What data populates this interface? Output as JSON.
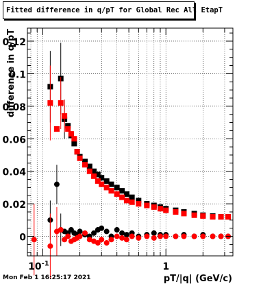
{
  "chart_data": {
    "type": "scatter",
    "title": "Fitted difference in q/pT for Global Rec All EtapT",
    "xlabel": "pT/|q| (GeV/c)",
    "ylabel": "difference in q/pT",
    "x_scale": "log",
    "xlim": [
      0.075,
      3.5
    ],
    "ylim": [
      -0.012,
      0.128
    ],
    "x_ticks": [
      {
        "value": 0.1,
        "label": "10^-1"
      },
      {
        "value": 1,
        "label": "1"
      }
    ],
    "y_ticks": [
      {
        "value": 0,
        "label": "0"
      },
      {
        "value": 0.02,
        "label": "0.02"
      },
      {
        "value": 0.04,
        "label": "0.04"
      },
      {
        "value": 0.06,
        "label": "0.06"
      },
      {
        "value": 0.08,
        "label": "0.08"
      },
      {
        "value": 0.1,
        "label": "0.1"
      },
      {
        "value": 0.12,
        "label": "0.12"
      }
    ],
    "grid": true,
    "series": [
      {
        "color": "#000000",
        "marker": "square",
        "points": [
          {
            "x": 0.115,
            "y": 0.092,
            "err": 0.022
          },
          {
            "x": 0.13,
            "y": 0.066
          },
          {
            "x": 0.14,
            "y": 0.097,
            "err": 0.022
          },
          {
            "x": 0.15,
            "y": 0.072,
            "err": 0.012
          },
          {
            "x": 0.16,
            "y": 0.068
          },
          {
            "x": 0.17,
            "y": 0.062
          },
          {
            "x": 0.18,
            "y": 0.057
          },
          {
            "x": 0.19,
            "y": 0.052
          },
          {
            "x": 0.2,
            "y": 0.049
          },
          {
            "x": 0.22,
            "y": 0.046
          },
          {
            "x": 0.24,
            "y": 0.043
          },
          {
            "x": 0.26,
            "y": 0.04
          },
          {
            "x": 0.28,
            "y": 0.038
          },
          {
            "x": 0.3,
            "y": 0.036
          },
          {
            "x": 0.33,
            "y": 0.034
          },
          {
            "x": 0.36,
            "y": 0.032
          },
          {
            "x": 0.4,
            "y": 0.03
          },
          {
            "x": 0.44,
            "y": 0.028
          },
          {
            "x": 0.48,
            "y": 0.026
          },
          {
            "x": 0.53,
            "y": 0.024
          },
          {
            "x": 0.6,
            "y": 0.022
          },
          {
            "x": 0.7,
            "y": 0.02
          },
          {
            "x": 0.8,
            "y": 0.019
          },
          {
            "x": 0.9,
            "y": 0.018
          },
          {
            "x": 1.0,
            "y": 0.017
          },
          {
            "x": 1.2,
            "y": 0.016
          },
          {
            "x": 1.4,
            "y": 0.015
          },
          {
            "x": 1.7,
            "y": 0.014
          },
          {
            "x": 2.0,
            "y": 0.013
          },
          {
            "x": 2.4,
            "y": 0.0125
          },
          {
            "x": 2.8,
            "y": 0.012
          },
          {
            "x": 3.2,
            "y": 0.012
          }
        ]
      },
      {
        "color": "#ff0000",
        "marker": "square",
        "points": [
          {
            "x": 0.115,
            "y": 0.082,
            "err": 0.023
          },
          {
            "x": 0.13,
            "y": 0.066
          },
          {
            "x": 0.14,
            "y": 0.082,
            "err": 0.016
          },
          {
            "x": 0.15,
            "y": 0.074,
            "err": 0.01
          },
          {
            "x": 0.16,
            "y": 0.066
          },
          {
            "x": 0.17,
            "y": 0.063
          },
          {
            "x": 0.18,
            "y": 0.06
          },
          {
            "x": 0.19,
            "y": 0.052
          },
          {
            "x": 0.2,
            "y": 0.048
          },
          {
            "x": 0.22,
            "y": 0.044
          },
          {
            "x": 0.24,
            "y": 0.04
          },
          {
            "x": 0.26,
            "y": 0.037
          },
          {
            "x": 0.28,
            "y": 0.034
          },
          {
            "x": 0.3,
            "y": 0.032
          },
          {
            "x": 0.33,
            "y": 0.03
          },
          {
            "x": 0.36,
            "y": 0.028
          },
          {
            "x": 0.4,
            "y": 0.026
          },
          {
            "x": 0.44,
            "y": 0.024
          },
          {
            "x": 0.48,
            "y": 0.022
          },
          {
            "x": 0.53,
            "y": 0.021
          },
          {
            "x": 0.6,
            "y": 0.02
          },
          {
            "x": 0.7,
            "y": 0.019
          },
          {
            "x": 0.8,
            "y": 0.018
          },
          {
            "x": 0.9,
            "y": 0.017
          },
          {
            "x": 1.0,
            "y": 0.016
          },
          {
            "x": 1.2,
            "y": 0.015
          },
          {
            "x": 1.4,
            "y": 0.014
          },
          {
            "x": 1.7,
            "y": 0.013
          },
          {
            "x": 2.0,
            "y": 0.0125
          },
          {
            "x": 2.4,
            "y": 0.012
          },
          {
            "x": 2.8,
            "y": 0.012
          },
          {
            "x": 3.2,
            "y": 0.012
          }
        ]
      },
      {
        "color": "#000000",
        "marker": "circle",
        "points": [
          {
            "x": 0.115,
            "y": 0.01,
            "err": 0.012
          },
          {
            "x": 0.13,
            "y": 0.032,
            "err": 0.012
          },
          {
            "x": 0.14,
            "y": 0.004,
            "err": 0.01
          },
          {
            "x": 0.15,
            "y": 0.003
          },
          {
            "x": 0.16,
            "y": 0.002
          },
          {
            "x": 0.17,
            "y": 0.004
          },
          {
            "x": 0.18,
            "y": 0.002
          },
          {
            "x": 0.19,
            "y": 0.001
          },
          {
            "x": 0.2,
            "y": 0.003
          },
          {
            "x": 0.22,
            "y": 0.001
          },
          {
            "x": 0.24,
            "y": 0.0
          },
          {
            "x": 0.26,
            "y": 0.002
          },
          {
            "x": 0.28,
            "y": 0.004
          },
          {
            "x": 0.3,
            "y": 0.005
          },
          {
            "x": 0.33,
            "y": 0.003
          },
          {
            "x": 0.36,
            "y": 0.0
          },
          {
            "x": 0.4,
            "y": 0.004
          },
          {
            "x": 0.44,
            "y": 0.002
          },
          {
            "x": 0.48,
            "y": 0.001
          },
          {
            "x": 0.53,
            "y": 0.002
          },
          {
            "x": 0.6,
            "y": 0.0
          },
          {
            "x": 0.7,
            "y": 0.001
          },
          {
            "x": 0.8,
            "y": 0.002
          },
          {
            "x": 0.9,
            "y": 0.001
          },
          {
            "x": 1.0,
            "y": 0.001
          },
          {
            "x": 1.2,
            "y": 0.0
          },
          {
            "x": 1.4,
            "y": 0.001
          },
          {
            "x": 1.7,
            "y": 0.0
          },
          {
            "x": 2.0,
            "y": 0.001
          },
          {
            "x": 2.4,
            "y": 0.0
          },
          {
            "x": 2.8,
            "y": 0.0
          },
          {
            "x": 3.2,
            "y": 0.0
          }
        ]
      },
      {
        "color": "#ff0000",
        "marker": "circle",
        "points": [
          {
            "x": 0.085,
            "y": -0.002,
            "err": 0.022
          },
          {
            "x": 0.115,
            "y": -0.006,
            "err": 0.02
          },
          {
            "x": 0.13,
            "y": 0.003,
            "err": 0.015
          },
          {
            "x": 0.14,
            "y": 0.004
          },
          {
            "x": 0.15,
            "y": -0.002
          },
          {
            "x": 0.16,
            "y": 0.0
          },
          {
            "x": 0.17,
            "y": -0.003
          },
          {
            "x": 0.18,
            "y": -0.002
          },
          {
            "x": 0.19,
            "y": -0.001
          },
          {
            "x": 0.2,
            "y": 0.0
          },
          {
            "x": 0.22,
            "y": 0.002
          },
          {
            "x": 0.24,
            "y": -0.002
          },
          {
            "x": 0.26,
            "y": -0.003
          },
          {
            "x": 0.28,
            "y": -0.004
          },
          {
            "x": 0.3,
            "y": -0.002
          },
          {
            "x": 0.33,
            "y": -0.004
          },
          {
            "x": 0.36,
            "y": -0.002
          },
          {
            "x": 0.4,
            "y": 0.0
          },
          {
            "x": 0.44,
            "y": -0.001
          },
          {
            "x": 0.48,
            "y": -0.002
          },
          {
            "x": 0.53,
            "y": 0.0
          },
          {
            "x": 0.6,
            "y": -0.001
          },
          {
            "x": 0.7,
            "y": 0.0
          },
          {
            "x": 0.8,
            "y": -0.001
          },
          {
            "x": 0.9,
            "y": 0.0
          },
          {
            "x": 1.0,
            "y": 0.0
          },
          {
            "x": 1.2,
            "y": 0.0
          },
          {
            "x": 1.4,
            "y": 0.0
          },
          {
            "x": 1.7,
            "y": 0.0
          },
          {
            "x": 2.0,
            "y": 0.0
          },
          {
            "x": 2.4,
            "y": 0.0
          },
          {
            "x": 2.8,
            "y": 0.0
          },
          {
            "x": 3.2,
            "y": 0.0
          }
        ]
      }
    ]
  },
  "footer_timestamp": "Mon Feb  1 16:25:17 2021"
}
